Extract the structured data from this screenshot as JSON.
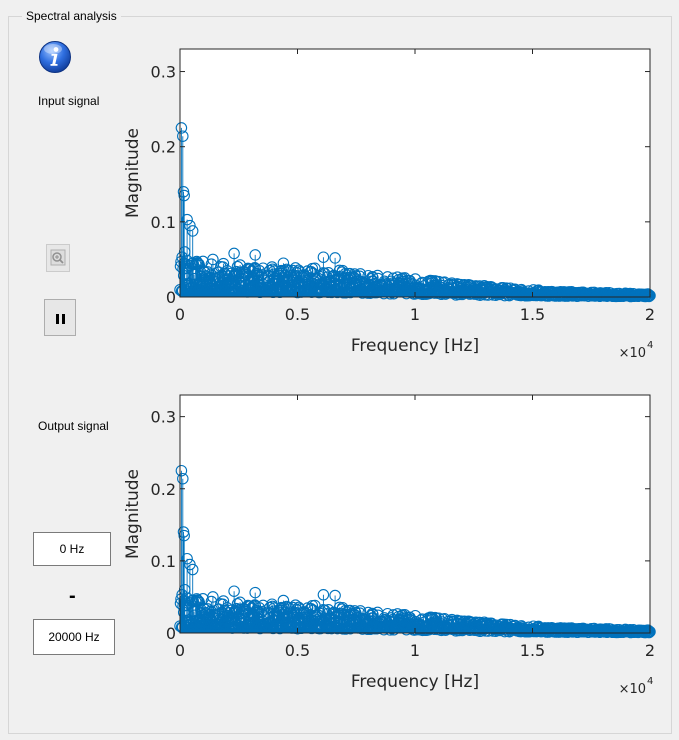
{
  "panel": {
    "title": "Spectral analysis"
  },
  "icons": {
    "info": "info-icon",
    "zoom": "zoom-icon",
    "pause": "pause-icon"
  },
  "labels": {
    "input_signal": "Input signal",
    "output_signal": "Output signal"
  },
  "range": {
    "min_value": "0 Hz",
    "separator": "-",
    "max_value": "20000 Hz"
  },
  "colors": {
    "series": "#0072bd",
    "axis": "#262626",
    "plot_bg": "#ffffff"
  },
  "chart_data": [
    {
      "type": "scatter",
      "title": "",
      "xlabel": "Frequency [Hz]",
      "ylabel": "Magnitude",
      "x_exponent_label": "×10",
      "x_exponent": "4",
      "xlim": [
        0,
        20000
      ],
      "ylim": [
        0,
        0.33
      ],
      "xticks": [
        0,
        5000,
        10000,
        15000,
        20000
      ],
      "xtick_labels": [
        "0",
        "0.5",
        "1",
        "1.5",
        "2"
      ],
      "yticks": [
        0,
        0.1,
        0.2,
        0.3
      ],
      "ytick_labels": [
        "0",
        "0.1",
        "0.2",
        "0.3"
      ],
      "stem_peaks": [
        {
          "x": 60,
          "y": 0.225
        },
        {
          "x": 120,
          "y": 0.214
        },
        {
          "x": 150,
          "y": 0.14
        },
        {
          "x": 180,
          "y": 0.135
        },
        {
          "x": 300,
          "y": 0.103
        },
        {
          "x": 420,
          "y": 0.095
        },
        {
          "x": 540,
          "y": 0.088
        },
        {
          "x": 200,
          "y": 0.06
        },
        {
          "x": 90,
          "y": 0.053
        },
        {
          "x": 2300,
          "y": 0.058
        },
        {
          "x": 3200,
          "y": 0.056
        },
        {
          "x": 6100,
          "y": 0.053
        },
        {
          "x": 6600,
          "y": 0.052
        },
        {
          "x": 1400,
          "y": 0.05
        },
        {
          "x": 4400,
          "y": 0.045
        }
      ],
      "envelope": [
        {
          "x": 0,
          "y": 0.05
        },
        {
          "x": 2000,
          "y": 0.045
        },
        {
          "x": 4000,
          "y": 0.04
        },
        {
          "x": 6000,
          "y": 0.04
        },
        {
          "x": 8000,
          "y": 0.03
        },
        {
          "x": 10000,
          "y": 0.025
        },
        {
          "x": 12000,
          "y": 0.018
        },
        {
          "x": 14000,
          "y": 0.012
        },
        {
          "x": 16000,
          "y": 0.008
        },
        {
          "x": 18000,
          "y": 0.006
        },
        {
          "x": 20000,
          "y": 0.004
        }
      ],
      "grid": false,
      "legend": "none"
    },
    {
      "type": "scatter",
      "title": "",
      "xlabel": "Frequency [Hz]",
      "ylabel": "Magnitude",
      "x_exponent_label": "×10",
      "x_exponent": "4",
      "xlim": [
        0,
        20000
      ],
      "ylim": [
        0,
        0.33
      ],
      "xticks": [
        0,
        5000,
        10000,
        15000,
        20000
      ],
      "xtick_labels": [
        "0",
        "0.5",
        "1",
        "1.5",
        "2"
      ],
      "yticks": [
        0,
        0.1,
        0.2,
        0.3
      ],
      "ytick_labels": [
        "0",
        "0.1",
        "0.2",
        "0.3"
      ],
      "stem_peaks": [
        {
          "x": 60,
          "y": 0.225
        },
        {
          "x": 120,
          "y": 0.214
        },
        {
          "x": 150,
          "y": 0.14
        },
        {
          "x": 180,
          "y": 0.135
        },
        {
          "x": 300,
          "y": 0.103
        },
        {
          "x": 420,
          "y": 0.095
        },
        {
          "x": 540,
          "y": 0.088
        },
        {
          "x": 200,
          "y": 0.06
        },
        {
          "x": 90,
          "y": 0.053
        },
        {
          "x": 2300,
          "y": 0.058
        },
        {
          "x": 3200,
          "y": 0.056
        },
        {
          "x": 6100,
          "y": 0.053
        },
        {
          "x": 6600,
          "y": 0.052
        },
        {
          "x": 1400,
          "y": 0.05
        },
        {
          "x": 4400,
          "y": 0.045
        }
      ],
      "envelope": [
        {
          "x": 0,
          "y": 0.05
        },
        {
          "x": 2000,
          "y": 0.045
        },
        {
          "x": 4000,
          "y": 0.04
        },
        {
          "x": 6000,
          "y": 0.04
        },
        {
          "x": 8000,
          "y": 0.03
        },
        {
          "x": 10000,
          "y": 0.025
        },
        {
          "x": 12000,
          "y": 0.018
        },
        {
          "x": 14000,
          "y": 0.012
        },
        {
          "x": 16000,
          "y": 0.008
        },
        {
          "x": 18000,
          "y": 0.006
        },
        {
          "x": 20000,
          "y": 0.004
        }
      ],
      "grid": false,
      "legend": "none"
    }
  ]
}
